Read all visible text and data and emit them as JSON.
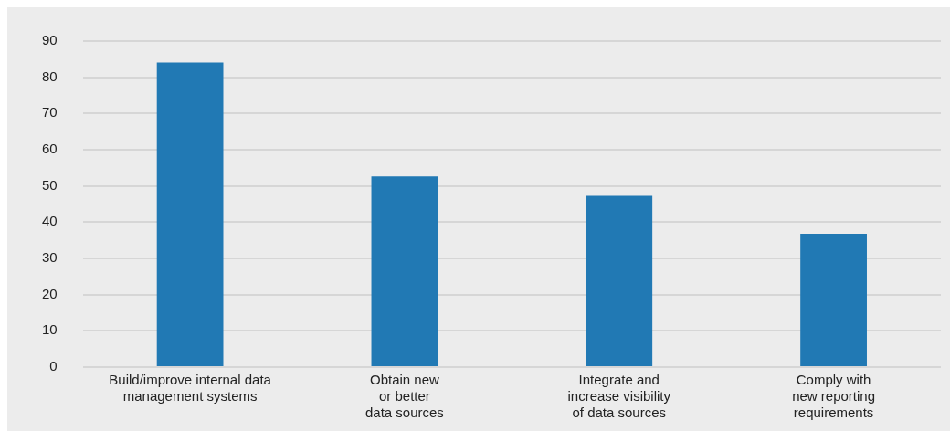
{
  "chart_data": {
    "type": "bar",
    "categories": [
      "Build/improve internal data\nmanagement systems",
      "Obtain new\nor better\ndata sources",
      "Integrate and\nincrease visibility\nof data sources",
      "Comply with\nnew reporting\nrequirements"
    ],
    "values": [
      84.1,
      52.6,
      47.3,
      36.8
    ],
    "color": "#2179b4",
    "ylim": [
      0,
      90
    ],
    "yticks": [
      0,
      10,
      20,
      30,
      40,
      50,
      60,
      70,
      80,
      90
    ],
    "grid": "y"
  }
}
